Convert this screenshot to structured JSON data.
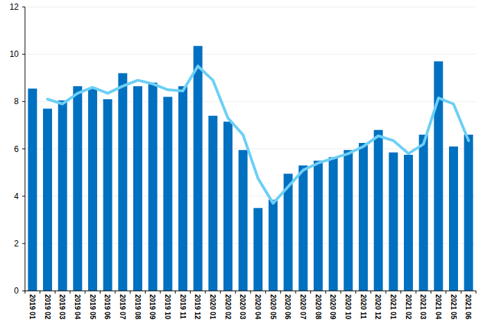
{
  "chart_data": {
    "type": "bar",
    "categories": [
      "2019 01",
      "2019 02",
      "2019 03",
      "2019 04",
      "2019 05",
      "2019 06",
      "2019 07",
      "2019 08",
      "2019 09",
      "2019 10",
      "2019 11",
      "2019 12",
      "2020 01",
      "2020 02",
      "2020 03",
      "2020 04",
      "2020 05",
      "2020 06",
      "2020 07",
      "2020 08",
      "2020 09",
      "2020 10",
      "2020 11",
      "2020 12",
      "2021 01",
      "2021 02",
      "2021 03",
      "2021 04",
      "2021 05",
      "2021 06"
    ],
    "series": [
      {
        "type": "bar",
        "color": "#0070c0",
        "values": [
          8.55,
          7.7,
          8.05,
          8.65,
          8.55,
          8.1,
          9.2,
          8.65,
          8.8,
          8.2,
          8.65,
          10.35,
          7.4,
          7.15,
          5.95,
          3.5,
          3.85,
          4.95,
          5.3,
          5.5,
          5.65,
          5.95,
          6.25,
          6.8,
          5.85,
          5.75,
          6.6,
          9.7,
          6.1,
          6.6
        ]
      },
      {
        "type": "line",
        "color": "#6ccff6",
        "values": [
          null,
          8.1,
          7.9,
          8.35,
          8.6,
          8.35,
          8.65,
          8.9,
          8.75,
          8.5,
          8.45,
          9.5,
          8.9,
          7.3,
          6.6,
          4.75,
          3.7,
          4.4,
          5.1,
          5.4,
          5.6,
          5.8,
          6.1,
          6.55,
          6.35,
          5.8,
          6.2,
          8.15,
          7.9,
          6.35
        ]
      }
    ],
    "ylim": [
      0,
      12
    ],
    "yticks": [
      0,
      2,
      4,
      6,
      8,
      10,
      12
    ],
    "grid": true
  }
}
